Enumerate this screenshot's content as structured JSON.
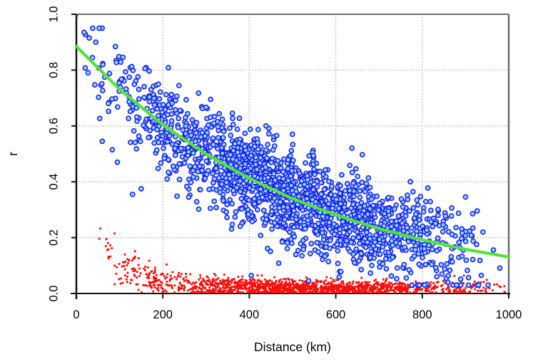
{
  "figure": {
    "kind": "R-style scatter plot of correlation vs distance",
    "background": "#ffffff"
  },
  "chart_data": {
    "type": "scatter",
    "title": "",
    "xlabel": "Distance (km)",
    "ylabel": "r",
    "xlim": [
      0,
      1000
    ],
    "ylim": [
      0.0,
      1.0
    ],
    "xticks": [
      "0",
      "200",
      "400",
      "600",
      "800",
      "1000"
    ],
    "xtick_values": [
      0,
      200,
      400,
      600,
      800,
      1000
    ],
    "yticks": [
      "0.0",
      "0.2",
      "0.4",
      "0.6",
      "0.8",
      "1.0"
    ],
    "ytick_values": [
      0.0,
      0.2,
      0.4,
      0.6,
      0.8,
      1.0
    ],
    "grid": {
      "on": true,
      "style": "dotted",
      "color": "#A9A9A9"
    },
    "box_color": "#6E6E6E",
    "axis_color": "#111111",
    "legend": null,
    "series": [
      {
        "name": "red-points",
        "type": "scatter",
        "marker": "dot",
        "color": "#FA0F0C",
        "radius": 1.55,
        "count": 1550,
        "seed": 2024,
        "model": {
          "kind": "exp_decay_plus_noise",
          "amplitude": 0.38,
          "range_km": 70,
          "baseline": 0.02,
          "noise_sd": 0.012,
          "noise_sd_extra": 0.05,
          "noise_range_km": 150,
          "x_min": 22,
          "x_max": 1000,
          "clip": [
            0.004,
            0.46
          ]
        },
        "outliers": [
          [
            2,
            0.995
          ]
        ]
      },
      {
        "name": "blue-points",
        "type": "scatter",
        "marker": "open-circle",
        "color": "#1B1BF0",
        "fill": "#8FD6F6",
        "stroke_width": 1.5,
        "radius": 3.1,
        "count": 1800,
        "seed": 1337,
        "model": {
          "kind": "exp_decay_plus_noise",
          "amplitude": 0.89,
          "range_km": 520,
          "baseline": 0.0,
          "noise_sd": 0.082,
          "noise_sd_extra": 0.0,
          "noise_range_km": 1,
          "x_min": 12,
          "x_max": 1000,
          "clip": [
            0.03,
            0.95
          ]
        },
        "outliers": [
          [
            18,
            0.935
          ],
          [
            30,
            0.915
          ],
          [
            45,
            0.9
          ],
          [
            60,
            0.545
          ],
          [
            95,
            0.47
          ],
          [
            130,
            0.355
          ],
          [
            150,
            0.375
          ],
          [
            210,
            0.41
          ],
          [
            260,
            0.345
          ],
          [
            310,
            0.305
          ]
        ]
      },
      {
        "name": "fit-line",
        "type": "line",
        "color": "#52E23A",
        "width": 4.2,
        "points": [
          [
            0,
            0.885
          ],
          [
            100,
            0.731
          ],
          [
            200,
            0.604
          ],
          [
            300,
            0.499
          ],
          [
            400,
            0.412
          ],
          [
            500,
            0.34
          ],
          [
            600,
            0.281
          ],
          [
            700,
            0.232
          ],
          [
            800,
            0.192
          ],
          [
            900,
            0.158
          ],
          [
            1000,
            0.131
          ]
        ]
      }
    ]
  }
}
